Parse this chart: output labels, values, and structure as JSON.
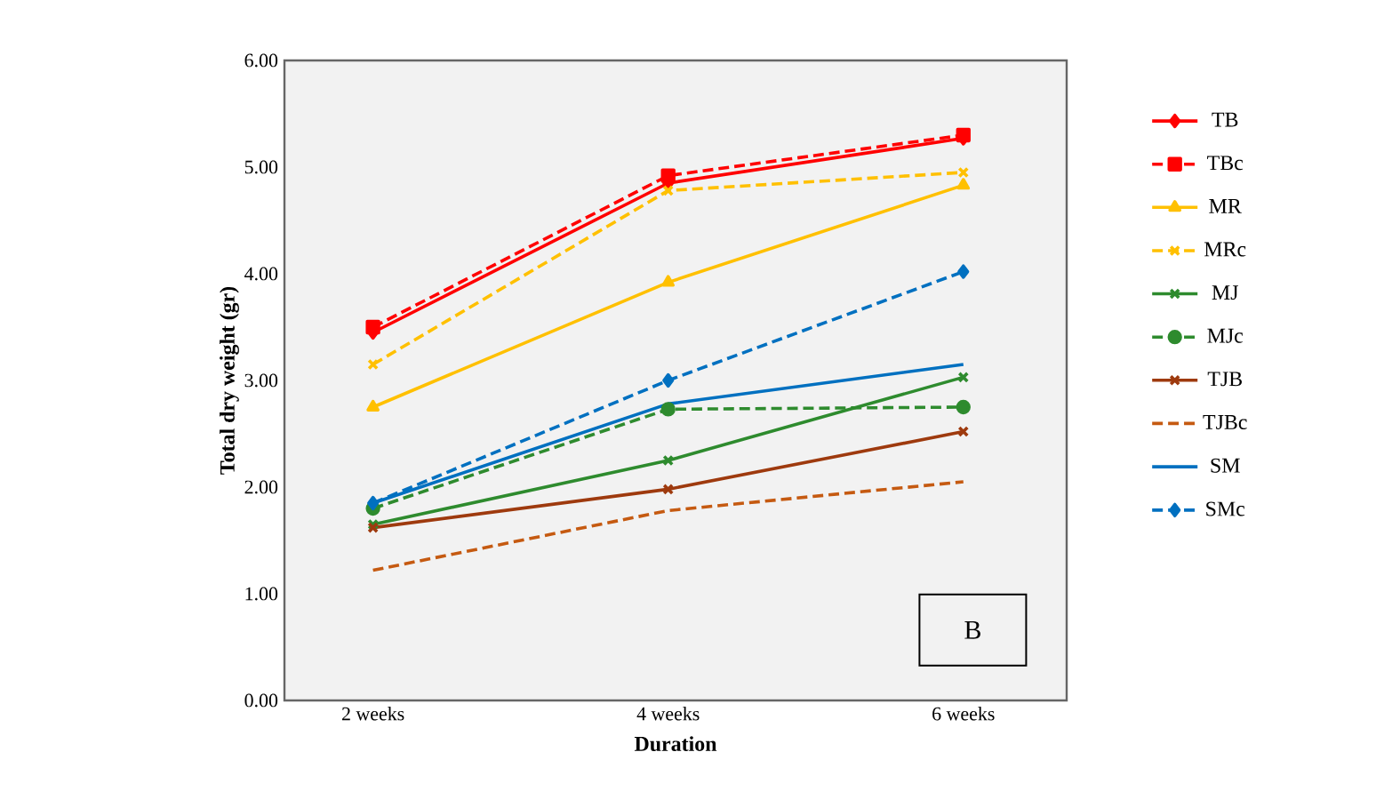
{
  "chart_data": {
    "type": "line",
    "xlabel": "Duration",
    "ylabel": "Total dry weight (gr)",
    "categories": [
      "2 weeks",
      "4 weeks",
      "6 weeks"
    ],
    "series": [
      {
        "name": "TB",
        "color": "#ff0000",
        "marker": "diamond",
        "line_style": "solid",
        "values": [
          3.45,
          4.85,
          5.27
        ]
      },
      {
        "name": "TBc",
        "color": "#ff0000",
        "marker": "square",
        "line_style": "dashed",
        "values": [
          3.5,
          4.92,
          5.3
        ]
      },
      {
        "name": "MR",
        "color": "#ffc000",
        "marker": "triangle",
        "line_style": "solid",
        "values": [
          2.75,
          3.92,
          4.83
        ]
      },
      {
        "name": "MRc",
        "color": "#ffc000",
        "marker": "cross",
        "line_style": "dashed",
        "values": [
          3.15,
          4.78,
          4.95
        ]
      },
      {
        "name": "MJ",
        "color": "#2e8b2e",
        "marker": "cross",
        "line_style": "solid",
        "values": [
          1.65,
          2.25,
          3.03
        ]
      },
      {
        "name": "MJc",
        "color": "#2e8b2e",
        "marker": "circle",
        "line_style": "dashed",
        "values": [
          1.8,
          2.73,
          2.75
        ]
      },
      {
        "name": "TJB",
        "color": "#9e3a0e",
        "marker": "cross",
        "line_style": "solid",
        "values": [
          1.62,
          1.98,
          2.52
        ]
      },
      {
        "name": "TJBc",
        "color": "#c55a11",
        "marker": "none",
        "line_style": "dashed",
        "values": [
          1.22,
          1.78,
          2.05
        ]
      },
      {
        "name": "SM",
        "color": "#0070c0",
        "marker": "none",
        "line_style": "solid",
        "values": [
          1.85,
          2.78,
          3.15
        ]
      },
      {
        "name": "SMc",
        "color": "#0070c0",
        "marker": "diamond",
        "line_style": "dashed",
        "values": [
          1.85,
          3.0,
          4.02
        ]
      }
    ],
    "ylim": [
      0,
      6
    ],
    "yticks": [
      {
        "value": 0,
        "label": "0.00"
      },
      {
        "value": 1,
        "label": "1.00"
      },
      {
        "value": 2,
        "label": "2.00"
      },
      {
        "value": 3,
        "label": "3.00"
      },
      {
        "value": 4,
        "label": "4.00"
      },
      {
        "value": 5,
        "label": "5.00"
      },
      {
        "value": 6,
        "label": "6.00"
      }
    ],
    "grid": false,
    "legend": "right",
    "annotations": [
      "B"
    ]
  }
}
